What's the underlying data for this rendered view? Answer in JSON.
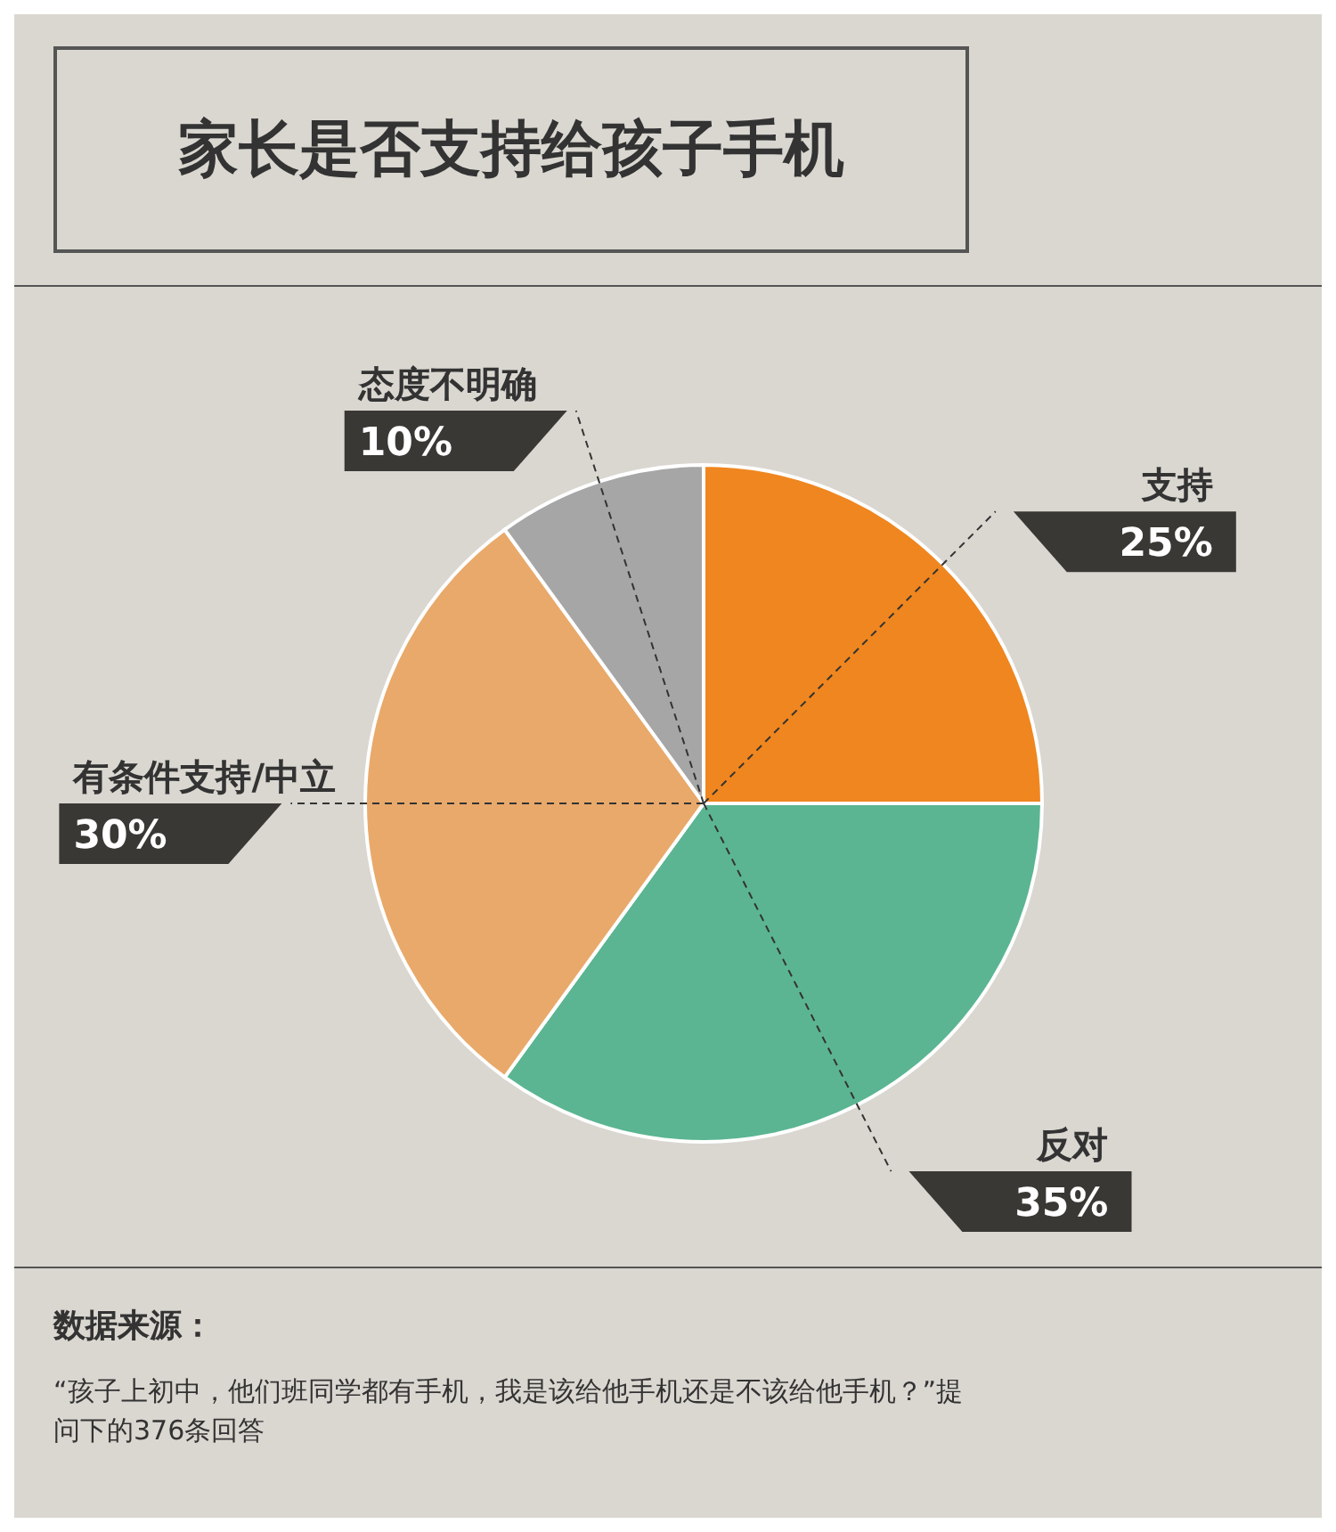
{
  "chart_data": {
    "type": "pie",
    "title": "家长是否支持给孩子手机",
    "categories": [
      "支持",
      "反对",
      "有条件支持/中立",
      "态度不明确"
    ],
    "values": [
      25,
      35,
      30,
      10
    ],
    "colors": [
      "#ef861f",
      "#5bb592",
      "#e8a96b",
      "#a6a6a6"
    ],
    "value_labels": [
      "25%",
      "35%",
      "30%",
      "10%"
    ],
    "annotations": [
      "数据来源：",
      "“孩子上初中，他们班同学都有手机，我是该给他手机还是不该给他手机？”提问下的376条回答"
    ]
  }
}
